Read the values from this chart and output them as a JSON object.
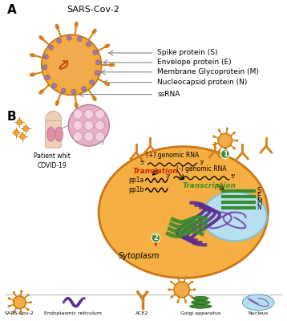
{
  "title_a": "SARS-Cov-2",
  "label_a": "A",
  "label_b": "B",
  "spike_label": "Spike protein (S)",
  "envelope_label": "Envelope protein (E)",
  "membrane_label": "Membrane Glycoprotein (M)",
  "nucleocapsid_label": "Nucleocapsid protein (N)",
  "ssrna_label": "ssRNA",
  "patient_label": "Patient whit\nCOVID-19",
  "cytoplasm_label": "Sytoplasm",
  "genomic_plus": "(+) genomic RNA",
  "genomic_minus": "(-) genomic RNA",
  "translation_label": "Translation",
  "transcription_label": "Transcription",
  "pp1a_label": "pp1a",
  "pp1b_label": "pp1b",
  "legend_sars": "SARS-Cov-2",
  "legend_er": "Endoplasmic reticulum",
  "legend_ace2": "ACE2",
  "legend_golgi": "Golgi apparatus",
  "legend_nucleus": "Nucleus",
  "semn_labels": [
    "S",
    "E",
    "M",
    "N"
  ],
  "bg_color": "#ffffff",
  "cell_color": "#f5a832",
  "nucleus_color": "#b8dff0",
  "virus_color": "#f5a832",
  "virus_inner_color": "#f0c080",
  "spike_color": "#d4821e",
  "er_color": "#5b2d8e",
  "golgi_color": "#3a8c2f",
  "text_color": "#222222",
  "arrow_color": "#888888",
  "red_color": "#cc2200",
  "label_fs": 6.5,
  "small_fs": 5.5,
  "panel_label_fs": 11
}
